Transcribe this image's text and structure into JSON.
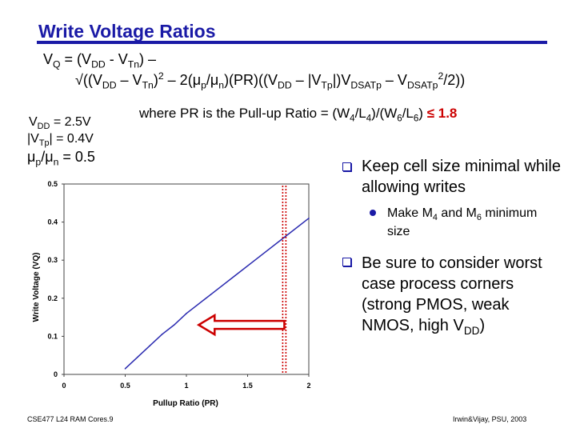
{
  "title": "Write Voltage Ratios",
  "equation": {
    "line1": {
      "a": "V",
      "q": "Q",
      "b": " = (V",
      "dd": "DD",
      "c": " - V",
      "tn": "Tn",
      "d": ") –"
    },
    "line2": {
      "a": "√((V",
      "dd": "DD",
      "b": " – V",
      "tn": "Tn",
      "c": ")",
      "two": "2",
      "d": " – 2(μ",
      "p": "p",
      "e": "/μ",
      "n": "n",
      "f": ")(PR)((V",
      "dd2": "DD",
      "g": " – |V",
      "tp": "Tp",
      "h": "|)V",
      "ds": "DSATp",
      "i": " – V",
      "ds2": "DSATp",
      "two2": "2",
      "j": "/2))"
    }
  },
  "params": {
    "vdd": {
      "a": "V",
      "sub": "DD",
      "b": " = 2.5V"
    },
    "vtp": {
      "a": "|V",
      "sub": "Tp",
      "b": "| = 0.4V"
    },
    "mu": {
      "a": "μ",
      "p": "p",
      "b": "/μ",
      "n": "n",
      "c": " = 0.5"
    }
  },
  "pr_def": {
    "a": "where PR is the Pull-up Ratio = (W",
    "w4": "4",
    "b": "/L",
    "l4": "4",
    "c": ")/(W",
    "w6": "6",
    "d": "/L",
    "l6": "6",
    "e": ")  ",
    "le": "≤ 1.8"
  },
  "bullets": {
    "b1": "Keep cell size minimal while allowing writes",
    "sub1": {
      "a": "Make M",
      "m4": "4",
      "b": " and M",
      "m6": "6",
      "c": " minimum size"
    },
    "b2": {
      "a": "Be sure to consider worst case process corners (strong PMOS, weak NMOS, high V",
      "dd": "DD",
      "b": ")"
    }
  },
  "chart_data": {
    "type": "line",
    "xlabel": "Pullup Ratio (PR)",
    "ylabel": "Write Voltage (VQ)",
    "xlim": [
      0,
      2
    ],
    "ylim": [
      0,
      0.5
    ],
    "x_ticks": [
      "0",
      "0.5",
      "1",
      "1.5",
      "2"
    ],
    "y_ticks": [
      "0",
      "0.1",
      "0.2",
      "0.3",
      "0.4",
      "0.5"
    ],
    "x": [
      0.5,
      0.6,
      0.7,
      0.8,
      0.9,
      1.0,
      1.2,
      1.4,
      1.6,
      1.8,
      2.0
    ],
    "series": [
      {
        "values": [
          0.015,
          0.045,
          0.075,
          0.105,
          0.13,
          0.16,
          0.21,
          0.26,
          0.31,
          0.36,
          0.41
        ],
        "color": "#2a2ab0"
      }
    ],
    "marker_pr": 1.8,
    "arrow": {
      "from_pr": 1.8,
      "to_pr": 1.1,
      "value": 0.13,
      "color": "#cc0000"
    }
  },
  "footer": {
    "left": "CSE477 L24 RAM Cores.9",
    "right": "Irwin&Vijay, PSU, 2003"
  }
}
